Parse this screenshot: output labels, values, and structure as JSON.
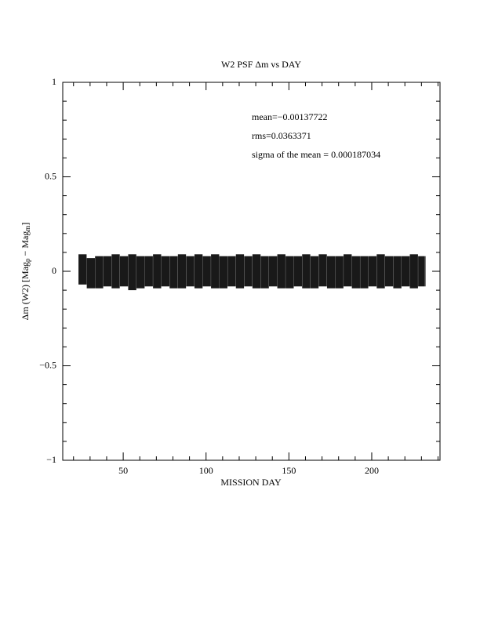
{
  "chart_data": {
    "type": "band",
    "title": "W2 PSF Δm vs DAY",
    "xlabel": "MISSION DAY",
    "ylabel": [
      "Δm (W2) [Mag",
      "p",
      " − Mag",
      "m",
      "]"
    ],
    "annotations": [
      "mean=−0.00137722",
      "rms=0.0363371",
      "sigma of the mean = 0.000187034"
    ],
    "color": "#000000",
    "x": [
      23,
      28,
      33,
      38,
      43,
      48,
      53,
      58,
      63,
      68,
      73,
      78,
      83,
      88,
      93,
      98,
      103,
      108,
      113,
      118,
      123,
      128,
      133,
      138,
      143,
      148,
      153,
      158,
      163,
      168,
      173,
      178,
      183,
      188,
      193,
      198,
      203,
      208,
      213,
      218,
      223,
      228,
      232
    ],
    "low": [
      -0.07,
      -0.09,
      -0.09,
      -0.08,
      -0.09,
      -0.08,
      -0.1,
      -0.09,
      -0.08,
      -0.09,
      -0.08,
      -0.09,
      -0.09,
      -0.08,
      -0.09,
      -0.08,
      -0.09,
      -0.09,
      -0.08,
      -0.09,
      -0.08,
      -0.09,
      -0.09,
      -0.08,
      -0.09,
      -0.09,
      -0.08,
      -0.09,
      -0.09,
      -0.08,
      -0.09,
      -0.09,
      -0.08,
      -0.09,
      -0.09,
      -0.08,
      -0.09,
      -0.08,
      -0.09,
      -0.08,
      -0.09,
      -0.08,
      -0.08
    ],
    "high": [
      0.09,
      0.07,
      0.08,
      0.08,
      0.09,
      0.08,
      0.09,
      0.08,
      0.08,
      0.09,
      0.08,
      0.08,
      0.09,
      0.08,
      0.09,
      0.08,
      0.09,
      0.08,
      0.08,
      0.09,
      0.08,
      0.09,
      0.08,
      0.08,
      0.09,
      0.08,
      0.08,
      0.09,
      0.08,
      0.09,
      0.08,
      0.08,
      0.09,
      0.08,
      0.08,
      0.08,
      0.09,
      0.08,
      0.08,
      0.08,
      0.09,
      0.08,
      0.08
    ],
    "xlim": [
      13.5,
      241.2
    ],
    "ylim": [
      -1,
      1
    ],
    "xticks": [
      50,
      100,
      150,
      200
    ],
    "xminorticks": [
      20,
      30,
      40,
      60,
      70,
      80,
      90,
      110,
      120,
      130,
      140,
      160,
      170,
      180,
      190,
      210,
      220,
      230,
      240
    ],
    "yticks": [
      {
        "value": -1,
        "label": "−1"
      },
      {
        "value": -0.5,
        "label": "−0.5"
      },
      0,
      0.5,
      1
    ],
    "yminorticks": [
      -0.9,
      -0.8,
      -0.7,
      -0.6,
      -0.4,
      -0.3,
      -0.2,
      -0.1,
      0.1,
      0.2,
      0.3,
      0.4,
      0.6,
      0.7,
      0.8,
      0.9
    ]
  }
}
